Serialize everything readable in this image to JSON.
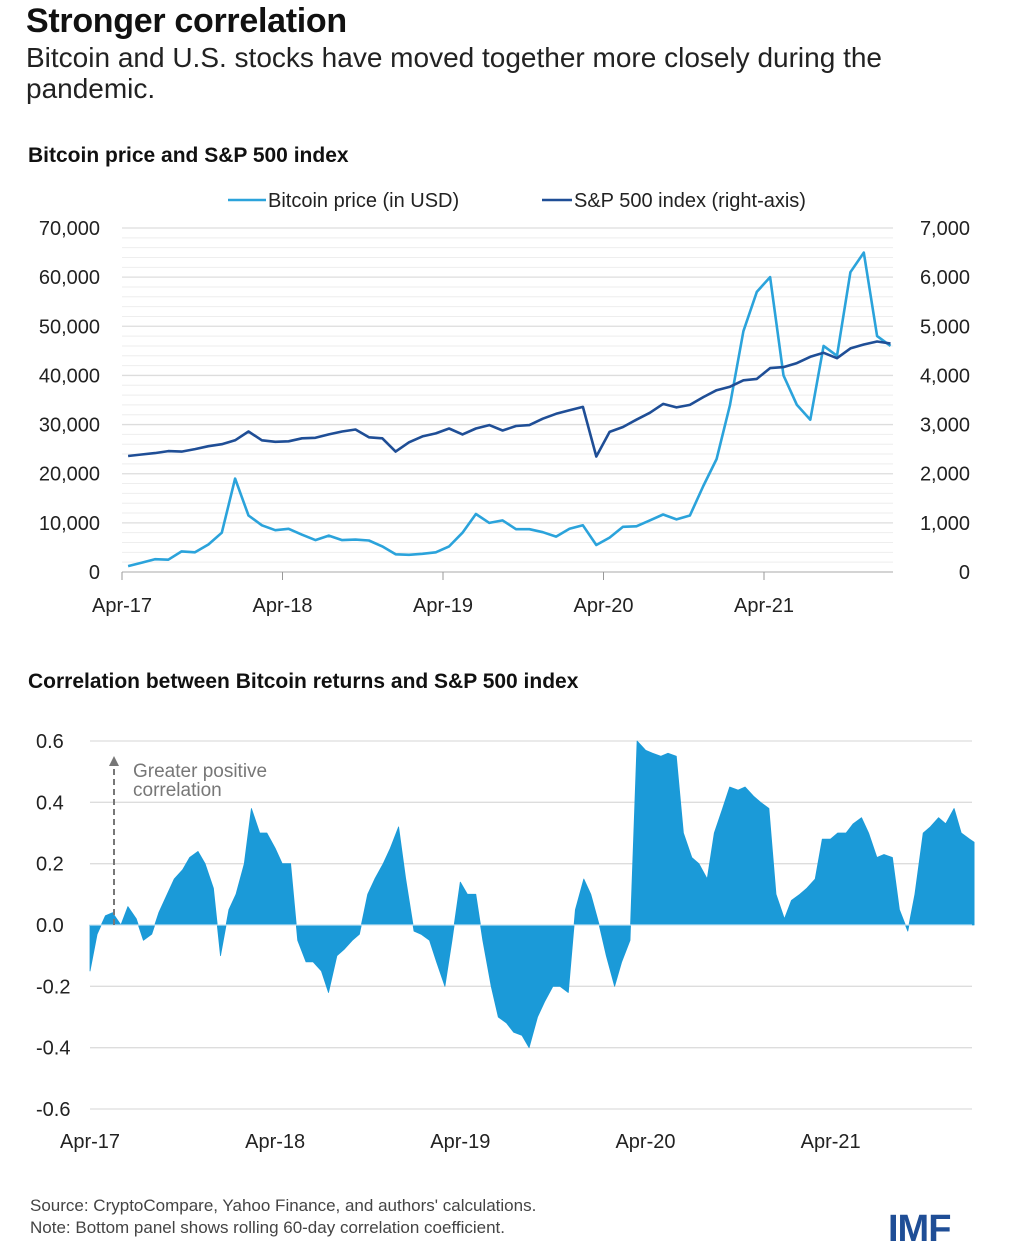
{
  "header": {
    "title": "Stronger correlation",
    "subtitle": "Bitcoin and U.S. stocks have moved together more closely during the pandemic."
  },
  "footer": {
    "source": "Source: CryptoCompare, Yahoo Finance, and authors' calculations.",
    "note": "Note: Bottom panel shows rolling 60-day correlation coefficient.",
    "logo": "IMF"
  },
  "chart_data": [
    {
      "type": "line",
      "title": "Bitcoin price and S&P 500 index",
      "legend_placement": "top-center",
      "grid": true,
      "x_ticks": [
        "Apr-17",
        "Apr-18",
        "Apr-19",
        "Apr-20",
        "Apr-21"
      ],
      "y_left": {
        "ylim": [
          0,
          70000
        ],
        "ticks": [
          "0",
          "10,000",
          "20,000",
          "30,000",
          "40,000",
          "50,000",
          "60,000",
          "70,000"
        ]
      },
      "y_right": {
        "ylim": [
          0,
          7000
        ],
        "ticks": [
          "0",
          "1,000",
          "2,000",
          "3,000",
          "4,000",
          "5,000",
          "6,000",
          "7,000"
        ]
      },
      "x": [
        "2017-04",
        "2017-05",
        "2017-06",
        "2017-07",
        "2017-08",
        "2017-09",
        "2017-10",
        "2017-11",
        "2017-12",
        "2018-01",
        "2018-02",
        "2018-03",
        "2018-04",
        "2018-05",
        "2018-06",
        "2018-07",
        "2018-08",
        "2018-09",
        "2018-10",
        "2018-11",
        "2018-12",
        "2019-01",
        "2019-02",
        "2019-03",
        "2019-04",
        "2019-05",
        "2019-06",
        "2019-07",
        "2019-08",
        "2019-09",
        "2019-10",
        "2019-11",
        "2019-12",
        "2020-01",
        "2020-02",
        "2020-03",
        "2020-04",
        "2020-05",
        "2020-06",
        "2020-07",
        "2020-08",
        "2020-09",
        "2020-10",
        "2020-11",
        "2020-12",
        "2021-01",
        "2021-02",
        "2021-03",
        "2021-04",
        "2021-05",
        "2021-06",
        "2021-07",
        "2021-08",
        "2021-09",
        "2021-10",
        "2021-11",
        "2021-12",
        "2022-01"
      ],
      "series": [
        {
          "name": "Bitcoin price (in USD)",
          "axis": "left",
          "color": "#2ba3db",
          "values": [
            1200,
            1900,
            2600,
            2500,
            4200,
            4000,
            5600,
            8000,
            19000,
            11500,
            9500,
            8500,
            8800,
            7600,
            6500,
            7400,
            6500,
            6600,
            6400,
            5200,
            3600,
            3500,
            3700,
            4000,
            5200,
            8000,
            11800,
            10000,
            10500,
            8700,
            8700,
            8100,
            7200,
            8800,
            9500,
            5500,
            7000,
            9200,
            9300,
            10500,
            11700,
            10700,
            11500,
            17500,
            23000,
            34000,
            49000,
            57000,
            60000,
            40000,
            34000,
            31000,
            46000,
            44000,
            61000,
            65000,
            48000,
            46000
          ]
        },
        {
          "name": "S&P 500 index (right-axis)",
          "axis": "right",
          "color": "#1f4e96",
          "values": [
            2360,
            2390,
            2420,
            2460,
            2450,
            2500,
            2560,
            2600,
            2680,
            2860,
            2680,
            2650,
            2660,
            2720,
            2730,
            2800,
            2860,
            2900,
            2740,
            2720,
            2450,
            2640,
            2760,
            2820,
            2920,
            2800,
            2920,
            2990,
            2880,
            2970,
            2990,
            3120,
            3220,
            3290,
            3360,
            2350,
            2850,
            2950,
            3100,
            3240,
            3420,
            3350,
            3400,
            3560,
            3700,
            3770,
            3900,
            3930,
            4150,
            4170,
            4250,
            4380,
            4460,
            4350,
            4550,
            4630,
            4690,
            4650
          ]
        }
      ]
    },
    {
      "type": "area",
      "title": "Correlation between Bitcoin returns and S&P 500 index",
      "grid": true,
      "annotation": [
        "Greater positive",
        "correlation"
      ],
      "color": "#1b9ad8",
      "x_ticks": [
        "Apr-17",
        "Apr-18",
        "Apr-19",
        "Apr-20",
        "Apr-21"
      ],
      "y_ticks": [
        "0.6",
        "0.4",
        "0.2",
        "0.0",
        "-0.2",
        "-0.4",
        "-0.6"
      ],
      "ylim": [
        -0.6,
        0.6
      ],
      "x": [
        "2017-04-01",
        "2017-04-15",
        "2017-05-01",
        "2017-05-15",
        "2017-06-01",
        "2017-06-15",
        "2017-07-01",
        "2017-07-15",
        "2017-08-01",
        "2017-08-15",
        "2017-09-01",
        "2017-09-15",
        "2017-10-01",
        "2017-10-15",
        "2017-11-01",
        "2017-11-15",
        "2017-12-01",
        "2017-12-15",
        "2018-01-01",
        "2018-01-15",
        "2018-02-01",
        "2018-02-15",
        "2018-03-01",
        "2018-03-15",
        "2018-04-01",
        "2018-04-15",
        "2018-05-01",
        "2018-05-15",
        "2018-06-01",
        "2018-06-15",
        "2018-07-01",
        "2018-07-15",
        "2018-08-01",
        "2018-08-15",
        "2018-09-01",
        "2018-09-15",
        "2018-10-01",
        "2018-10-15",
        "2018-11-01",
        "2018-11-15",
        "2018-12-01",
        "2018-12-15",
        "2019-01-01",
        "2019-01-15",
        "2019-02-01",
        "2019-02-15",
        "2019-03-01",
        "2019-03-15",
        "2019-04-01",
        "2019-04-15",
        "2019-05-01",
        "2019-05-15",
        "2019-06-01",
        "2019-06-15",
        "2019-07-01",
        "2019-07-15",
        "2019-08-01",
        "2019-08-15",
        "2019-09-01",
        "2019-09-15",
        "2019-10-01",
        "2019-10-15",
        "2019-11-01",
        "2019-11-15",
        "2019-12-01",
        "2019-12-15",
        "2020-01-01",
        "2020-01-15",
        "2020-02-01",
        "2020-02-15",
        "2020-03-01",
        "2020-03-15",
        "2020-04-01",
        "2020-04-15",
        "2020-05-01",
        "2020-05-15",
        "2020-06-01",
        "2020-06-15",
        "2020-07-01",
        "2020-07-15",
        "2020-08-01",
        "2020-08-15",
        "2020-09-01",
        "2020-09-15",
        "2020-10-01",
        "2020-10-15",
        "2020-11-01",
        "2020-11-15",
        "2020-12-01",
        "2020-12-15",
        "2021-01-01",
        "2021-01-15",
        "2021-02-01",
        "2021-02-15",
        "2021-03-01",
        "2021-03-15",
        "2021-04-01",
        "2021-04-15",
        "2021-05-01",
        "2021-05-15",
        "2021-06-01",
        "2021-06-15",
        "2021-07-01",
        "2021-07-15",
        "2021-08-01",
        "2021-08-15",
        "2021-09-01",
        "2021-09-15",
        "2021-10-01",
        "2021-10-15",
        "2021-11-01",
        "2021-11-15",
        "2021-12-01",
        "2021-12-15",
        "2022-01-01",
        "2022-01-10"
      ],
      "values": [
        -0.15,
        -0.03,
        0.03,
        0.04,
        0.0,
        0.06,
        0.02,
        -0.05,
        -0.03,
        0.04,
        0.1,
        0.15,
        0.18,
        0.22,
        0.24,
        0.2,
        0.12,
        -0.1,
        0.05,
        0.1,
        0.2,
        0.38,
        0.3,
        0.3,
        0.25,
        0.2,
        0.2,
        -0.05,
        -0.12,
        -0.12,
        -0.15,
        -0.22,
        -0.1,
        -0.08,
        -0.05,
        -0.03,
        0.1,
        0.15,
        0.2,
        0.25,
        0.32,
        0.15,
        -0.02,
        -0.03,
        -0.05,
        -0.12,
        -0.2,
        -0.05,
        0.14,
        0.1,
        0.1,
        -0.05,
        -0.2,
        -0.3,
        -0.32,
        -0.35,
        -0.36,
        -0.4,
        -0.3,
        -0.25,
        -0.2,
        -0.2,
        -0.22,
        0.05,
        0.15,
        0.1,
        0.0,
        -0.1,
        -0.2,
        -0.12,
        -0.05,
        0.6,
        0.57,
        0.56,
        0.55,
        0.56,
        0.55,
        0.3,
        0.22,
        0.2,
        0.15,
        0.3,
        0.38,
        0.45,
        0.44,
        0.45,
        0.42,
        0.4,
        0.38,
        0.1,
        0.02,
        0.08,
        0.1,
        0.12,
        0.15,
        0.28,
        0.28,
        0.3,
        0.3,
        0.33,
        0.35,
        0.3,
        0.22,
        0.23,
        0.22,
        0.05,
        -0.02,
        0.1,
        0.3,
        0.32,
        0.35,
        0.33,
        0.38,
        0.3,
        0.28,
        0.27
      ]
    }
  ]
}
